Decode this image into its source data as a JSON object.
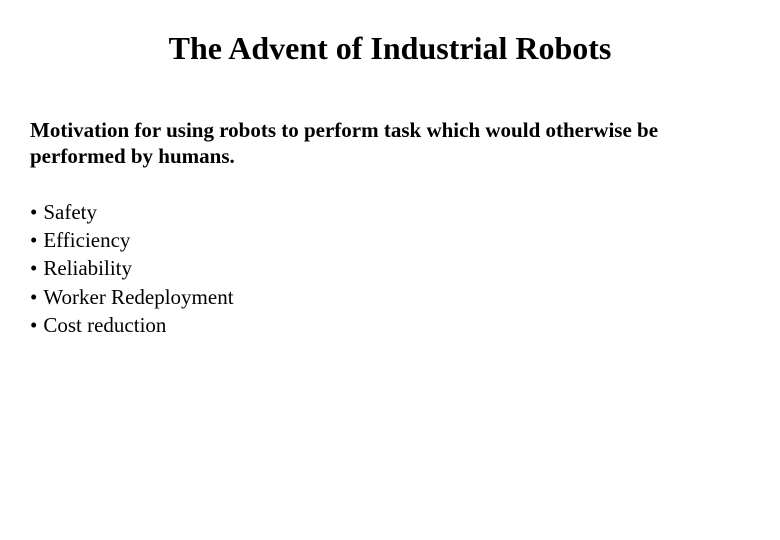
{
  "slide": {
    "title": "The Advent of Industrial Robots",
    "subtitle": "Motivation for using robots to perform task which would otherwise be performed by humans.",
    "bullets": [
      "Safety",
      "Efficiency",
      "Reliability",
      "Worker Redeployment",
      "Cost reduction"
    ],
    "colors": {
      "background": "#ffffff",
      "text": "#000000"
    },
    "typography": {
      "title_fontsize": 32,
      "title_fontweight": "bold",
      "subtitle_fontsize": 21,
      "subtitle_fontweight": "bold",
      "bullet_fontsize": 21,
      "font_family": "Times New Roman"
    }
  }
}
